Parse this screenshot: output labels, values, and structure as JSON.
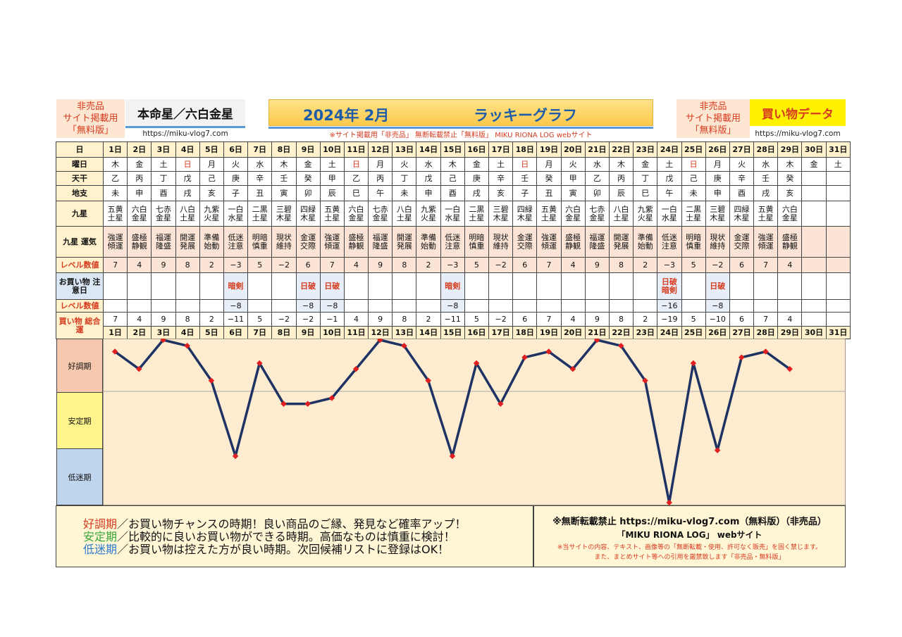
{
  "header": {
    "left_nonsale": [
      "非売品",
      "サイト掲載用",
      "「無料版」"
    ],
    "honmei": "本命星／六白金星",
    "url_left": "https://miku-vlog7.com",
    "title_year": "2024年 2月",
    "title_graph": "ラッキーグラフ",
    "notice": "※サイト掲載用「非売品」 無断転載禁止「無料版」 MIKU RIONA LOG webサイト",
    "right_nonsale": [
      "非売品",
      "サイト掲載用",
      "「無料版」"
    ],
    "kaimono": "買い物データ",
    "url_right": "https://miku-vlog7.com"
  },
  "table": {
    "labels": {
      "day": "日",
      "weekday": "曜日",
      "tenkan": "天干",
      "chishi": "地支",
      "kyusei": "九星",
      "kyusei_unki": "九星 運気",
      "level": "レベル数値",
      "caution": "お買い物 注意日",
      "level2": "レベル数値",
      "total": "買い物 総合運"
    },
    "days": [
      "1日",
      "2日",
      "3日",
      "4日",
      "5日",
      "6日",
      "7日",
      "8日",
      "9日",
      "10日",
      "11日",
      "12日",
      "13日",
      "14日",
      "15日",
      "16日",
      "17日",
      "18日",
      "19日",
      "20日",
      "21日",
      "22日",
      "23日",
      "24日",
      "25日",
      "26日",
      "27日",
      "28日",
      "29日",
      "30日",
      "31日"
    ],
    "weekdays": [
      "木",
      "金",
      "土",
      "日",
      "月",
      "火",
      "水",
      "木",
      "金",
      "土",
      "日",
      "月",
      "火",
      "水",
      "木",
      "金",
      "土",
      "日",
      "月",
      "火",
      "水",
      "木",
      "金",
      "土",
      "日",
      "月",
      "火",
      "水",
      "木",
      "金",
      "土"
    ],
    "tenkan": [
      "乙",
      "丙",
      "丁",
      "戊",
      "己",
      "庚",
      "辛",
      "壬",
      "癸",
      "甲",
      "乙",
      "丙",
      "丁",
      "戊",
      "己",
      "庚",
      "辛",
      "壬",
      "癸",
      "甲",
      "乙",
      "丙",
      "丁",
      "戊",
      "己",
      "庚",
      "辛",
      "壬",
      "癸",
      "",
      ""
    ],
    "chishi": [
      "未",
      "申",
      "酉",
      "戌",
      "亥",
      "子",
      "丑",
      "寅",
      "卯",
      "辰",
      "巳",
      "午",
      "未",
      "申",
      "酉",
      "戌",
      "亥",
      "子",
      "丑",
      "寅",
      "卯",
      "辰",
      "巳",
      "午",
      "未",
      "申",
      "酉",
      "戌",
      "亥",
      "",
      ""
    ],
    "kyusei": [
      "五黄\n土星",
      "六白\n金星",
      "七赤\n金星",
      "八白\n土星",
      "九紫\n火星",
      "一白\n水星",
      "二黒\n土星",
      "三碧\n木星",
      "四緑\n木星",
      "五黄\n土星",
      "六白\n金星",
      "七赤\n金星",
      "八白\n土星",
      "九紫\n火星",
      "一白\n水星",
      "二黒\n土星",
      "三碧\n木星",
      "四緑\n木星",
      "五黄\n土星",
      "六白\n金星",
      "七赤\n金星",
      "八白\n土星",
      "九紫\n火星",
      "一白\n水星",
      "二黒\n土星",
      "三碧\n木星",
      "四緑\n木星",
      "五黄\n土星",
      "六白\n金星",
      "",
      ""
    ],
    "unki": [
      "強運\n傾運",
      "盛極\n静観",
      "福運\n隆盛",
      "開運\n発展",
      "準備\n始動",
      "低迷\n注意",
      "明暗\n慎重",
      "現状\n維持",
      "金運\n交際",
      "強運\n傾運",
      "盛極\n静観",
      "福運\n隆盛",
      "開運\n発展",
      "準備\n始動",
      "低迷\n注意",
      "明暗\n慎重",
      "現状\n維持",
      "金運\n交際",
      "強運\n傾運",
      "盛極\n静観",
      "福運\n隆盛",
      "開運\n発展",
      "準備\n始動",
      "低迷\n注意",
      "明暗\n慎重",
      "現状\n維持",
      "金運\n交際",
      "強運\n傾運",
      "盛極\n静観",
      "",
      ""
    ],
    "level": [
      "7",
      "4",
      "9",
      "8",
      "2",
      "−3",
      "5",
      "−2",
      "6",
      "7",
      "4",
      "9",
      "8",
      "2",
      "−3",
      "5",
      "−2",
      "6",
      "7",
      "4",
      "9",
      "8",
      "2",
      "−3",
      "5",
      "−2",
      "6",
      "7",
      "4",
      "",
      ""
    ],
    "caution": [
      "",
      "",
      "",
      "",
      "",
      "暗剣",
      "",
      "",
      "日破",
      "日破",
      "",
      "",
      "",
      "",
      "暗剣",
      "",
      "",
      "",
      "",
      "",
      "",
      "",
      "",
      "日破\n暗剣",
      "",
      "日破",
      "",
      "",
      "",
      "",
      ""
    ],
    "level2": [
      "",
      "",
      "",
      "",
      "",
      "−8",
      "",
      "",
      "−8",
      "−8",
      "",
      "",
      "",
      "",
      "−8",
      "",
      "",
      "",
      "",
      "",
      "",
      "",
      "",
      "−16",
      "",
      "−8",
      "",
      "",
      "",
      "",
      ""
    ],
    "total": [
      "7",
      "4",
      "9",
      "8",
      "2",
      "−11",
      "5",
      "−2",
      "−2",
      "−1",
      "4",
      "9",
      "8",
      "2",
      "−11",
      "5",
      "−2",
      "6",
      "7",
      "4",
      "9",
      "8",
      "2",
      "−19",
      "5",
      "−10",
      "6",
      "7",
      "4",
      "",
      ""
    ]
  },
  "zones": {
    "good": "好調期",
    "stable": "安定期",
    "low": "低迷期"
  },
  "legend": {
    "good_term": "好調期",
    "good_text": "／お買い物チャンスの時期！良い商品のご縁、発見など確率アップ！",
    "stable_term": "安定期",
    "stable_text": "／比較的に良いお買い物ができる時期。高価なものは慎重に検討！",
    "low_term": "低迷期",
    "low_text": "／お買い物は控えた方が良い時期。次回候補リストに登録はOK！"
  },
  "info": {
    "line1": "※無断転載禁止 https://miku-vlog7.com（無料版）（非売品）",
    "line2": "「MIKU RIONA LOG」 webサイト",
    "line3": "※当サイトの内容、テキスト、画像等の「無断転載・使用、許可なく販売」を固く禁じます。",
    "line4": "また、まとめサイト等への引用を厳禁致します「非売品・無料版」"
  },
  "chart_data": {
    "type": "line",
    "x": [
      1,
      2,
      3,
      4,
      5,
      6,
      7,
      8,
      9,
      10,
      11,
      12,
      13,
      14,
      15,
      16,
      17,
      18,
      19,
      20,
      21,
      22,
      23,
      24,
      25,
      26,
      27,
      28,
      29
    ],
    "values": [
      7,
      4,
      9,
      8,
      2,
      -11,
      5,
      -2,
      -2,
      -1,
      4,
      9,
      8,
      2,
      -11,
      5,
      -2,
      6,
      7,
      4,
      9,
      8,
      2,
      -19,
      5,
      -10,
      6,
      7,
      4
    ],
    "ylim": [
      -19,
      9
    ],
    "line_color": "#1f3264",
    "marker_color": "#e02020"
  }
}
